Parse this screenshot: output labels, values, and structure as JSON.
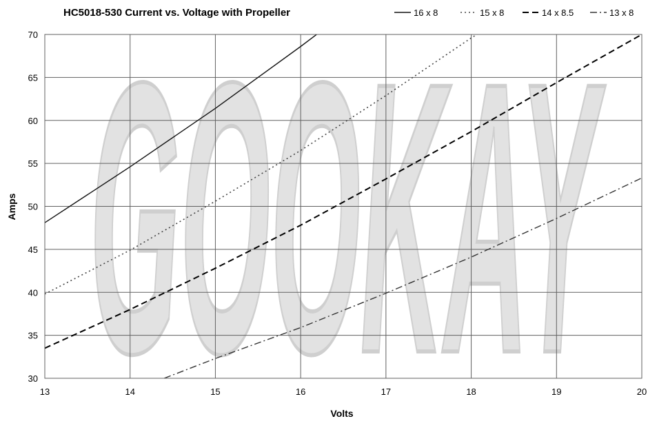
{
  "chart_data": {
    "type": "line",
    "title": "HC5018-530 Current vs. Voltage with Propeller",
    "xlabel": "Volts",
    "ylabel": "Amps",
    "xlim": [
      13,
      20
    ],
    "ylim": [
      30,
      70
    ],
    "xticks": [
      13,
      14,
      15,
      16,
      17,
      18,
      19,
      20
    ],
    "yticks": [
      30,
      35,
      40,
      45,
      50,
      55,
      60,
      65,
      70
    ],
    "grid": true,
    "legend_position": "top-right",
    "watermark": "GOOKAY",
    "series": [
      {
        "name": "16 x 8",
        "style": "solid",
        "x": [
          13,
          14,
          15,
          16,
          16.2
        ],
        "y": [
          48.1,
          54.6,
          61.4,
          68.6,
          70.1
        ]
      },
      {
        "name": "15 x 8",
        "style": "dotted",
        "x": [
          13,
          14,
          15,
          16,
          17,
          18,
          18.1
        ],
        "y": [
          39.8,
          44.9,
          50.6,
          56.5,
          62.9,
          69.6,
          70.2
        ]
      },
      {
        "name": "14 x 8.5",
        "style": "dashed",
        "x": [
          13,
          14,
          15,
          16,
          17,
          18,
          19,
          20
        ],
        "y": [
          33.5,
          38.0,
          42.8,
          47.8,
          53.2,
          58.7,
          64.4,
          70.0
        ]
      },
      {
        "name": "13 x 8",
        "style": "dash-dot",
        "x": [
          14.4,
          15,
          16,
          17,
          18,
          19,
          20
        ],
        "y": [
          30.0,
          32.3,
          35.9,
          39.9,
          44.1,
          48.6,
          53.3
        ]
      }
    ],
    "colors": {
      "grid": "#606060",
      "watermark": "#e2e2e2"
    }
  }
}
